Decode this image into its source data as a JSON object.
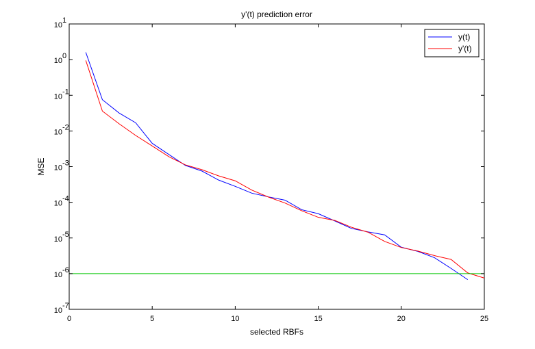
{
  "chart_data": {
    "type": "line",
    "title": "y'(t) prediction error",
    "xlabel": "selected RBFs",
    "ylabel": "MSE",
    "xlim": [
      0,
      25
    ],
    "ylim": [
      1e-07,
      10
    ],
    "yscale": "log",
    "xticks": [
      0,
      5,
      10,
      15,
      20,
      25
    ],
    "yticks": [
      {
        "value": 1e-07,
        "base": "10",
        "exp": "-7"
      },
      {
        "value": 1e-06,
        "base": "10",
        "exp": "-6"
      },
      {
        "value": 1e-05,
        "base": "10",
        "exp": "-5"
      },
      {
        "value": 0.0001,
        "base": "10",
        "exp": "-4"
      },
      {
        "value": 0.001,
        "base": "10",
        "exp": "-3"
      },
      {
        "value": 0.01,
        "base": "10",
        "exp": "-2"
      },
      {
        "value": 0.1,
        "base": "10",
        "exp": "-1"
      },
      {
        "value": 1,
        "base": "10",
        "exp": "0"
      },
      {
        "value": 10,
        "base": "10",
        "exp": "1"
      }
    ],
    "grid": false,
    "legend_position": "top-right",
    "series": [
      {
        "name": "y(t)",
        "color": "#0000ff",
        "x": [
          1,
          2,
          3,
          4,
          5,
          6,
          7,
          8,
          9,
          10,
          11,
          12,
          13,
          14,
          15,
          16,
          17,
          18,
          19,
          20,
          21,
          22,
          23,
          24
        ],
        "y": [
          1.6,
          0.075,
          0.032,
          0.017,
          0.0045,
          0.0022,
          0.00108,
          0.00075,
          0.00042,
          0.00028,
          0.00018,
          0.000142,
          0.000115,
          6.2e-05,
          4.8e-05,
          3e-05,
          1.85e-05,
          1.48e-05,
          1.22e-05,
          5.5e-06,
          4.2e-06,
          2.8e-06,
          1.4e-06,
          6.8e-07
        ]
      },
      {
        "name": "y'(t)",
        "color": "#ff0000",
        "x": [
          1,
          2,
          3,
          4,
          5,
          6,
          7,
          8,
          9,
          10,
          11,
          12,
          13,
          14,
          15,
          16,
          17,
          18,
          19,
          20,
          21,
          22,
          23,
          24,
          25
        ],
        "y": [
          0.95,
          0.036,
          0.016,
          0.0075,
          0.0038,
          0.0019,
          0.00112,
          0.00082,
          0.00055,
          0.0004,
          0.00022,
          0.00014,
          9.55e-05,
          5.8e-05,
          3.8e-05,
          3.1e-05,
          2e-05,
          1.45e-05,
          8e-06,
          5.4e-06,
          4.3e-06,
          3.2e-06,
          2.5e-06,
          1.05e-06,
          7.5e-07
        ]
      },
      {
        "name": "",
        "color": "#00c800",
        "x": [
          0,
          25
        ],
        "y": [
          1e-06,
          1e-06
        ]
      }
    ]
  }
}
